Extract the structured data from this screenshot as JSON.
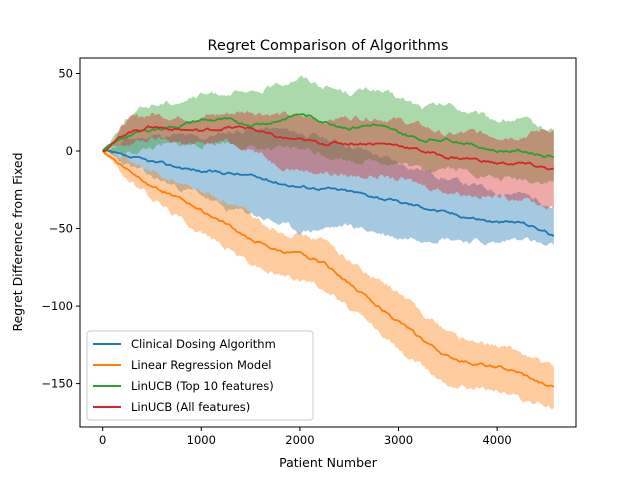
{
  "chart_data": {
    "type": "line",
    "title": "Regret Comparison of Algorithms",
    "xlabel": "Patient Number",
    "ylabel": "Regret Difference from Fixed",
    "xlim": [
      -230,
      4800
    ],
    "ylim": [
      -178,
      60
    ],
    "xticks": [
      0,
      1000,
      2000,
      3000,
      4000
    ],
    "yticks": [
      50,
      0,
      -50,
      -100,
      -150
    ],
    "xtick_labels": [
      "0",
      "1000",
      "2000",
      "3000",
      "4000"
    ],
    "ytick_labels": [
      "50",
      "0",
      "−50",
      "−100",
      "−150"
    ],
    "grid": false,
    "legend_position": "lower-left",
    "series": [
      {
        "name": "Clinical Dosing Algorithm",
        "color": "#1f77b4",
        "x": [
          0,
          250,
          500,
          750,
          1000,
          1250,
          1500,
          1750,
          2000,
          2250,
          2500,
          2750,
          3000,
          3250,
          3500,
          3750,
          4000,
          4250,
          4500,
          4575
        ],
        "mean": [
          0,
          -4,
          -7,
          -10,
          -13,
          -14,
          -16,
          -20,
          -23,
          -24,
          -26,
          -29,
          -33,
          -36,
          -40,
          -43,
          -46,
          -46,
          -52,
          -55
        ],
        "upper": [
          0,
          7,
          10,
          10,
          8,
          12,
          14,
          14,
          12,
          8,
          4,
          -2,
          -8,
          -12,
          -18,
          -22,
          -26,
          -28,
          -33,
          -36
        ],
        "lower": [
          0,
          -9,
          -17,
          -23,
          -28,
          -38,
          -40,
          -46,
          -52,
          -50,
          -48,
          -52,
          -56,
          -56,
          -56,
          -58,
          -60,
          -55,
          -62,
          -62
        ]
      },
      {
        "name": "Linear Regression Model",
        "color": "#ff7f0e",
        "x": [
          0,
          250,
          500,
          750,
          1000,
          1250,
          1500,
          1750,
          2000,
          2250,
          2500,
          2750,
          3000,
          3250,
          3500,
          3750,
          4000,
          4250,
          4500,
          4575
        ],
        "mean": [
          0,
          -12,
          -22,
          -30,
          -38,
          -47,
          -57,
          -64,
          -67,
          -72,
          -85,
          -98,
          -110,
          -122,
          -133,
          -137,
          -139,
          -144,
          -152,
          -152
        ],
        "upper": [
          0,
          -6,
          -14,
          -20,
          -26,
          -32,
          -42,
          -50,
          -54,
          -58,
          -70,
          -82,
          -92,
          -104,
          -116,
          -124,
          -126,
          -130,
          -138,
          -140
        ],
        "lower": [
          0,
          -18,
          -30,
          -42,
          -52,
          -62,
          -72,
          -80,
          -82,
          -88,
          -102,
          -114,
          -128,
          -140,
          -150,
          -152,
          -154,
          -160,
          -164,
          -166
        ]
      },
      {
        "name": "LinUCB (Top 10 features)",
        "color": "#2ca02c",
        "x": [
          0,
          250,
          500,
          750,
          1000,
          1250,
          1500,
          1750,
          2000,
          2250,
          2500,
          2750,
          3000,
          3250,
          3500,
          3750,
          4000,
          4250,
          4500,
          4575
        ],
        "mean": [
          0,
          10,
          14,
          16,
          20,
          20,
          17,
          19,
          24,
          19,
          15,
          17,
          12,
          7,
          8,
          4,
          0,
          0,
          -3,
          -3
        ],
        "upper": [
          0,
          22,
          30,
          32,
          36,
          38,
          36,
          42,
          48,
          42,
          38,
          40,
          34,
          28,
          30,
          24,
          20,
          20,
          14,
          14
        ],
        "lower": [
          0,
          -2,
          2,
          4,
          4,
          6,
          2,
          0,
          2,
          -2,
          -6,
          -6,
          -8,
          -12,
          -10,
          -14,
          -18,
          -18,
          -20,
          -20
        ]
      },
      {
        "name": "LinUCB (All features)",
        "color": "#d62728",
        "x": [
          0,
          250,
          500,
          750,
          1000,
          1250,
          1500,
          1750,
          2000,
          2250,
          2500,
          2750,
          3000,
          3250,
          3500,
          3750,
          4000,
          4250,
          4500,
          4575
        ],
        "mean": [
          0,
          12,
          16,
          14,
          13,
          15,
          15,
          9,
          7,
          5,
          5,
          5,
          4,
          0,
          -4,
          -5,
          -8,
          -8,
          -11,
          -12
        ],
        "upper": [
          0,
          20,
          24,
          22,
          22,
          24,
          26,
          24,
          22,
          20,
          22,
          22,
          20,
          16,
          10,
          12,
          10,
          10,
          14,
          14
        ],
        "lower": [
          0,
          4,
          8,
          6,
          4,
          6,
          2,
          -8,
          -12,
          -14,
          -16,
          -16,
          -18,
          -22,
          -26,
          -28,
          -30,
          -30,
          -36,
          -38
        ]
      }
    ]
  }
}
